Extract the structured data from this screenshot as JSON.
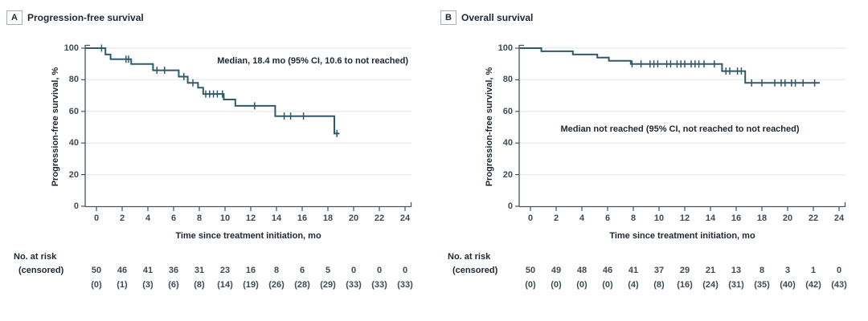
{
  "chart_data": [
    {
      "type": "line",
      "subtype": "kaplan-meier-step-curve",
      "panel_label": "A",
      "title": "Progression-free survival",
      "ylabel": "Progression-free survival, %",
      "xlabel": "Time since treatment initiation, mo",
      "annotation": "Median, 18.4 mo (95% CI, 10.6 to not reached)",
      "xlim": [
        0,
        24
      ],
      "ylim": [
        0,
        100
      ],
      "xticks": [
        "0",
        "2",
        "4",
        "6",
        "8",
        "10",
        "12",
        "14",
        "16",
        "18",
        "20",
        "22",
        "24"
      ],
      "yticks": [
        "100",
        "80",
        "60",
        "40",
        "20",
        "0"
      ],
      "grid": "horizontal",
      "legend": "none",
      "line_color": "#30596b",
      "steps": [
        [
          0,
          100
        ],
        [
          0.7,
          96
        ],
        [
          1.1,
          93
        ],
        [
          2.7,
          90
        ],
        [
          4.4,
          86
        ],
        [
          6.4,
          82
        ],
        [
          7.1,
          78
        ],
        [
          7.9,
          75
        ],
        [
          8.3,
          71
        ],
        [
          9.9,
          67.5
        ],
        [
          10.8,
          63.5
        ],
        [
          13.9,
          57
        ],
        [
          18.5,
          46
        ]
      ],
      "end_time": 18.9,
      "censor_marks": [
        [
          0.4,
          100
        ],
        [
          2.3,
          93
        ],
        [
          2.5,
          93
        ],
        [
          4.7,
          86
        ],
        [
          5.3,
          86
        ],
        [
          6.8,
          82
        ],
        [
          7.5,
          78
        ],
        [
          8.5,
          71
        ],
        [
          8.8,
          71
        ],
        [
          9.1,
          71
        ],
        [
          9.4,
          71
        ],
        [
          9.8,
          71
        ],
        [
          12.3,
          63.5
        ],
        [
          14.6,
          57
        ],
        [
          15.1,
          57
        ],
        [
          16.1,
          57
        ],
        [
          18.7,
          46
        ]
      ],
      "risk_table": {
        "row_label_1": "No. at risk",
        "row_label_2": "(censored)",
        "at_risk": [
          "50",
          "46",
          "41",
          "36",
          "31",
          "23",
          "16",
          "8",
          "6",
          "5",
          "0",
          "0",
          "0"
        ],
        "censored": [
          "(0)",
          "(1)",
          "(3)",
          "(6)",
          "(8)",
          "(14)",
          "(19)",
          "(26)",
          "(28)",
          "(29)",
          "(33)",
          "(33)",
          "(33)"
        ]
      }
    },
    {
      "type": "line",
      "subtype": "kaplan-meier-step-curve",
      "panel_label": "B",
      "title": "Overall survival",
      "ylabel": "Progression-free survival, %",
      "xlabel": "Time since treatment initiation, mo",
      "annotation": "Median not reached (95% CI, not reached to not reached)",
      "xlim": [
        0,
        24
      ],
      "ylim": [
        0,
        100
      ],
      "xticks": [
        "0",
        "2",
        "4",
        "6",
        "8",
        "10",
        "12",
        "14",
        "16",
        "18",
        "20",
        "22",
        "24"
      ],
      "yticks": [
        "100",
        "80",
        "60",
        "40",
        "20",
        "0"
      ],
      "grid": "horizontal",
      "legend": "none",
      "line_color": "#30596b",
      "steps": [
        [
          0,
          100
        ],
        [
          0.85,
          98
        ],
        [
          3.3,
          96
        ],
        [
          5.2,
          94
        ],
        [
          6.1,
          92
        ],
        [
          7.8,
          90
        ],
        [
          14.9,
          85.5
        ],
        [
          16.7,
          78
        ]
      ],
      "end_time": 22.5,
      "censor_marks": [
        [
          7.9,
          90
        ],
        [
          8.6,
          90
        ],
        [
          9.3,
          90
        ],
        [
          9.6,
          90
        ],
        [
          9.9,
          90
        ],
        [
          10.6,
          90
        ],
        [
          10.9,
          90
        ],
        [
          11.4,
          90
        ],
        [
          11.7,
          90
        ],
        [
          12.0,
          90
        ],
        [
          12.5,
          90
        ],
        [
          12.8,
          90
        ],
        [
          13.1,
          90
        ],
        [
          13.5,
          90
        ],
        [
          14.3,
          90
        ],
        [
          15.2,
          85.5
        ],
        [
          15.5,
          85.5
        ],
        [
          16.1,
          85.5
        ],
        [
          16.4,
          85.5
        ],
        [
          17.2,
          78
        ],
        [
          18.0,
          78
        ],
        [
          19.0,
          78
        ],
        [
          19.5,
          78
        ],
        [
          19.8,
          78
        ],
        [
          20.3,
          78
        ],
        [
          20.6,
          78
        ],
        [
          21.2,
          78
        ],
        [
          22.1,
          78
        ]
      ],
      "risk_table": {
        "row_label_1": "No. at risk",
        "row_label_2": "(censored)",
        "at_risk": [
          "50",
          "49",
          "48",
          "46",
          "41",
          "37",
          "29",
          "21",
          "13",
          "8",
          "3",
          "1",
          "0"
        ],
        "censored": [
          "(0)",
          "(0)",
          "(0)",
          "(0)",
          "(4)",
          "(8)",
          "(16)",
          "(24)",
          "(31)",
          "(35)",
          "(40)",
          "(42)",
          "(43)"
        ]
      }
    }
  ],
  "style": {
    "curve_color": "#30596b",
    "axis_color": "#4a545f",
    "gridline_color": "#e8ecee",
    "text_dark": "#1d2733",
    "text_tick": "#3f4a55"
  }
}
